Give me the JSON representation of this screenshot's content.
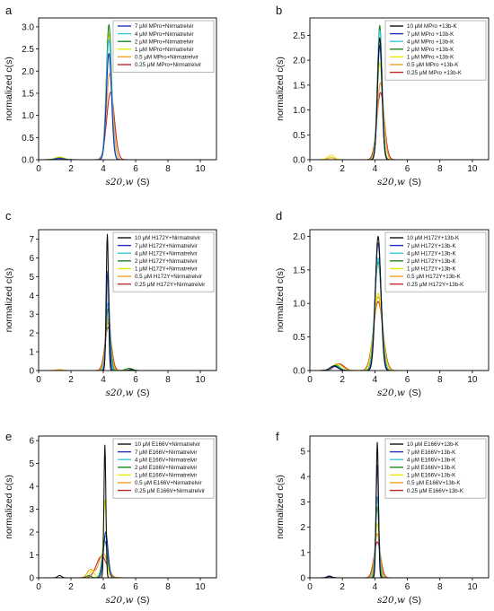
{
  "chart_data": [
    {
      "panel": "a",
      "type": "line",
      "ylabel": "normalized c(s)",
      "xlabel": "s20,w",
      "xlabel_unit": "(S)",
      "xlim": [
        0,
        11
      ],
      "ylim": [
        0,
        3.2
      ],
      "xticks": [
        "0",
        "2",
        "4",
        "6",
        "8",
        "10"
      ],
      "yticks": [
        "0.0",
        "0.5",
        "1.0",
        "1.5",
        "2.0",
        "2.5",
        "3.0"
      ],
      "legend": "top-right",
      "series": [
        {
          "name": "7 μM MPro+Nirmatrelvir",
          "color": "#1f2fbf",
          "peak": 2.4,
          "center": 4.35,
          "width": 0.16,
          "minor": [
            [
              1.3,
              0.03,
              0.25
            ]
          ]
        },
        {
          "name": "4 μM MPro+Nirmatrelvir",
          "color": "#38c8e0",
          "peak": 2.7,
          "center": 4.35,
          "width": 0.17,
          "minor": [
            [
              1.3,
              0.03,
              0.25
            ]
          ]
        },
        {
          "name": "2 μM MPro+Nirmatrelvir",
          "color": "#1b8a1b",
          "peak": 3.05,
          "center": 4.35,
          "width": 0.16,
          "minor": [
            [
              1.3,
              0.04,
              0.25
            ]
          ]
        },
        {
          "name": "1 μM MPro+Nirmatrelvir",
          "color": "#e8e800",
          "peak": 2.85,
          "center": 4.35,
          "width": 0.17,
          "minor": [
            [
              1.3,
              0.06,
              0.3
            ]
          ]
        },
        {
          "name": "0.5 μM MPro+Nirmatrelvir",
          "color": "#f0a020",
          "peak": 1.95,
          "center": 4.4,
          "width": 0.2,
          "minor": [
            [
              1.3,
              0.05,
              0.3
            ]
          ]
        },
        {
          "name": "0.25 μM MPro+Nirmatrelvir",
          "color": "#c0262c",
          "peak": 1.52,
          "center": 4.45,
          "width": 0.24,
          "minor": [
            [
              1.3,
              0.02,
              0.3
            ]
          ]
        }
      ]
    },
    {
      "panel": "b",
      "type": "line",
      "ylabel": "normalized c(s)",
      "xlabel": "s20,w",
      "xlabel_unit": "(S)",
      "xlim": [
        0,
        11
      ],
      "ylim": [
        0,
        2.85
      ],
      "xticks": [
        "0",
        "2",
        "4",
        "6",
        "8",
        "10"
      ],
      "yticks": [
        "0.0",
        "0.5",
        "1.0",
        "1.5",
        "2.0",
        "2.5"
      ],
      "legend": "top-right",
      "series": [
        {
          "name": "10 μM MPro +13b-K",
          "color": "#111111",
          "peak": 2.45,
          "center": 4.3,
          "width": 0.14,
          "minor": []
        },
        {
          "name": "7 μM MPro +13b-K",
          "color": "#1f2fbf",
          "peak": 2.3,
          "center": 4.3,
          "width": 0.14,
          "minor": []
        },
        {
          "name": "4 μM MPro +13b-K",
          "color": "#38c8e0",
          "peak": 2.6,
          "center": 4.3,
          "width": 0.15,
          "minor": []
        },
        {
          "name": "2 μM MPro +13b-K",
          "color": "#1b8a1b",
          "peak": 2.7,
          "center": 4.3,
          "width": 0.14,
          "minor": []
        },
        {
          "name": "1 μM MPro +13b-K",
          "color": "#e8e800",
          "peak": 1.95,
          "center": 4.3,
          "width": 0.17,
          "minor": [
            [
              1.3,
              0.09,
              0.2
            ]
          ]
        },
        {
          "name": "0.5 μM MPro +13b-K",
          "color": "#f0a020",
          "peak": 1.55,
          "center": 4.35,
          "width": 0.2,
          "minor": [
            [
              1.3,
              0.04,
              0.2
            ]
          ]
        },
        {
          "name": "0.25 μM MPro +13b-K",
          "color": "#c0262c",
          "peak": 1.35,
          "center": 4.35,
          "width": 0.23,
          "minor": []
        }
      ]
    },
    {
      "panel": "c",
      "type": "line",
      "ylabel": "normalized c(s)",
      "xlabel": "s20,w",
      "xlabel_unit": "(S)",
      "xlim": [
        0,
        11
      ],
      "ylim": [
        0,
        7.5
      ],
      "xticks": [
        "0",
        "2",
        "4",
        "6",
        "8",
        "10"
      ],
      "yticks": [
        "0",
        "1",
        "2",
        "3",
        "4",
        "5",
        "6",
        "7"
      ],
      "legend": "top-right",
      "series": [
        {
          "name": "10 μM H172Y+Nirmatrelvir",
          "color": "#111111",
          "peak": 7.25,
          "center": 4.25,
          "width": 0.07,
          "minor": [
            [
              5.7,
              0.05,
              0.15
            ]
          ]
        },
        {
          "name": "7 μM H172Y+Nirmatrelvir",
          "color": "#1f2fbf",
          "peak": 5.3,
          "center": 4.28,
          "width": 0.09,
          "minor": []
        },
        {
          "name": "4 μM H172Y+Nirmatrelvir",
          "color": "#38c8e0",
          "peak": 3.6,
          "center": 4.28,
          "width": 0.12,
          "minor": []
        },
        {
          "name": "2 μM H172Y+Nirmatrelvir",
          "color": "#1b8a1b",
          "peak": 3.3,
          "center": 4.3,
          "width": 0.13,
          "minor": [
            [
              5.6,
              0.12,
              0.2
            ]
          ]
        },
        {
          "name": "1 μM H172Y+Nirmatrelvir",
          "color": "#e8e800",
          "peak": 2.75,
          "center": 4.3,
          "width": 0.15,
          "minor": []
        },
        {
          "name": "0.5 μM H172Y+Nirmatrelvir",
          "color": "#f0a020",
          "peak": 2.55,
          "center": 4.3,
          "width": 0.17,
          "minor": [
            [
              1.3,
              0.05,
              0.2
            ]
          ]
        },
        {
          "name": "0.25 μM H172Y+Nirmatrelvir",
          "color": "#c0262c",
          "peak": 2.3,
          "center": 4.3,
          "width": 0.2,
          "minor": []
        }
      ]
    },
    {
      "panel": "d",
      "type": "line",
      "ylabel": "normalized c(s)",
      "xlabel": "s20,w",
      "xlabel_unit": "(S)",
      "xlim": [
        0,
        11
      ],
      "ylim": [
        0,
        2.1
      ],
      "xticks": [
        "0",
        "2",
        "4",
        "6",
        "8",
        "10"
      ],
      "yticks": [
        "0.0",
        "0.5",
        "1.0",
        "1.5",
        "2.0"
      ],
      "legend": "top-right",
      "series": [
        {
          "name": "10 μM H172Y+13b-K",
          "color": "#111111",
          "peak": 2.0,
          "center": 4.2,
          "width": 0.17,
          "minor": [
            [
              1.5,
              0.07,
              0.25
            ]
          ]
        },
        {
          "name": "7 μM H172Y+13b-K",
          "color": "#1f2fbf",
          "peak": 1.9,
          "center": 4.2,
          "width": 0.18,
          "minor": [
            [
              1.5,
              0.06,
              0.25
            ]
          ]
        },
        {
          "name": "4 μM H172Y+13b-K",
          "color": "#38c8e0",
          "peak": 1.68,
          "center": 4.2,
          "width": 0.2,
          "minor": [
            [
              1.6,
              0.07,
              0.25
            ]
          ]
        },
        {
          "name": "2 μM H172Y+13b-K",
          "color": "#1b8a1b",
          "peak": 1.62,
          "center": 4.2,
          "width": 0.21,
          "minor": [
            [
              1.6,
              0.08,
              0.25
            ]
          ]
        },
        {
          "name": "1 μM H172Y+13b-K",
          "color": "#e8e800",
          "peak": 1.15,
          "center": 4.2,
          "width": 0.26,
          "minor": [
            [
              1.7,
              0.09,
              0.3
            ]
          ]
        },
        {
          "name": "0.5 μM H172Y+13b-K",
          "color": "#f0a020",
          "peak": 1.1,
          "center": 4.2,
          "width": 0.27,
          "minor": [
            [
              1.7,
              0.1,
              0.3
            ]
          ]
        },
        {
          "name": "0.25 μM H172Y+13b-K",
          "color": "#c0262c",
          "peak": 1.03,
          "center": 4.2,
          "width": 0.29,
          "minor": [
            [
              1.8,
              0.1,
              0.3
            ]
          ]
        }
      ]
    },
    {
      "panel": "e",
      "type": "line",
      "ylabel": "normalized c(s)",
      "xlabel": "s20,w",
      "xlabel_unit": "(S)",
      "xlim": [
        0,
        11
      ],
      "ylim": [
        0,
        6.2
      ],
      "xticks": [
        "0",
        "2",
        "4",
        "6",
        "8",
        "10"
      ],
      "yticks": [
        "0",
        "1",
        "2",
        "3",
        "4",
        "5",
        "6"
      ],
      "legend": "top-right",
      "series": [
        {
          "name": "10 μM E166V+Nirmatrelvir",
          "color": "#111111",
          "peak": 5.8,
          "center": 4.1,
          "width": 0.06,
          "minor": [
            [
              1.3,
              0.1,
              0.12
            ]
          ]
        },
        {
          "name": "7 μM E166V+Nirmatrelvir",
          "color": "#1f2fbf",
          "peak": 2.0,
          "center": 4.15,
          "width": 0.14,
          "minor": []
        },
        {
          "name": "4 μM E166V+Nirmatrelvir",
          "color": "#38c8e0",
          "peak": 1.85,
          "center": 4.15,
          "width": 0.15,
          "minor": []
        },
        {
          "name": "2 μM E166V+Nirmatrelvir",
          "color": "#1b8a1b",
          "peak": 1.6,
          "center": 4.1,
          "width": 0.16,
          "minor": [
            [
              3.1,
              0.1,
              0.15
            ]
          ]
        },
        {
          "name": "1 μM E166V+Nirmatrelvir",
          "color": "#e8e800",
          "peak": 3.4,
          "center": 4.1,
          "width": 0.1,
          "minor": [
            [
              3.3,
              0.3,
              0.15
            ]
          ]
        },
        {
          "name": "0.5 μM E166V+Nirmatrelvir",
          "color": "#f0a020",
          "peak": 1.05,
          "center": 4.0,
          "width": 0.28,
          "minor": [
            [
              3.2,
              0.35,
              0.2
            ]
          ]
        },
        {
          "name": "0.25 μM E166V+Nirmatrelvir",
          "color": "#c0262c",
          "peak": 0.95,
          "center": 3.9,
          "width": 0.32,
          "minor": []
        }
      ]
    },
    {
      "panel": "f",
      "type": "line",
      "ylabel": "normalized c(s)",
      "xlabel": "s20,w",
      "xlabel_unit": "(S)",
      "xlim": [
        0,
        11
      ],
      "ylim": [
        0,
        5.6
      ],
      "xticks": [
        "0",
        "2",
        "4",
        "6",
        "8",
        "10"
      ],
      "yticks": [
        "0",
        "1",
        "2",
        "3",
        "4",
        "5"
      ],
      "legend": "top-right",
      "series": [
        {
          "name": "10 μM E166V+13b-K",
          "color": "#111111",
          "peak": 5.35,
          "center": 4.15,
          "width": 0.07,
          "minor": [
            [
              1.2,
              0.05,
              0.15
            ]
          ]
        },
        {
          "name": "7 μM E166V+13b-K",
          "color": "#1f2fbf",
          "peak": 4.45,
          "center": 4.15,
          "width": 0.08,
          "minor": [
            [
              1.2,
              0.07,
              0.15
            ]
          ]
        },
        {
          "name": "4 μM E166V+13b-K",
          "color": "#38c8e0",
          "peak": 3.2,
          "center": 4.15,
          "width": 0.1,
          "minor": []
        },
        {
          "name": "2 μM E166V+13b-K",
          "color": "#1b8a1b",
          "peak": 2.8,
          "center": 4.15,
          "width": 0.11,
          "minor": []
        },
        {
          "name": "1 μM E166V+13b-K",
          "color": "#e8e800",
          "peak": 2.15,
          "center": 4.15,
          "width": 0.13,
          "minor": []
        },
        {
          "name": "0.5 μM E166V+13b-K",
          "color": "#f0a020",
          "peak": 1.75,
          "center": 4.15,
          "width": 0.16,
          "minor": []
        },
        {
          "name": "0.25 μM E166V+13b-K",
          "color": "#c0262c",
          "peak": 1.42,
          "center": 4.15,
          "width": 0.2,
          "minor": []
        }
      ]
    }
  ]
}
